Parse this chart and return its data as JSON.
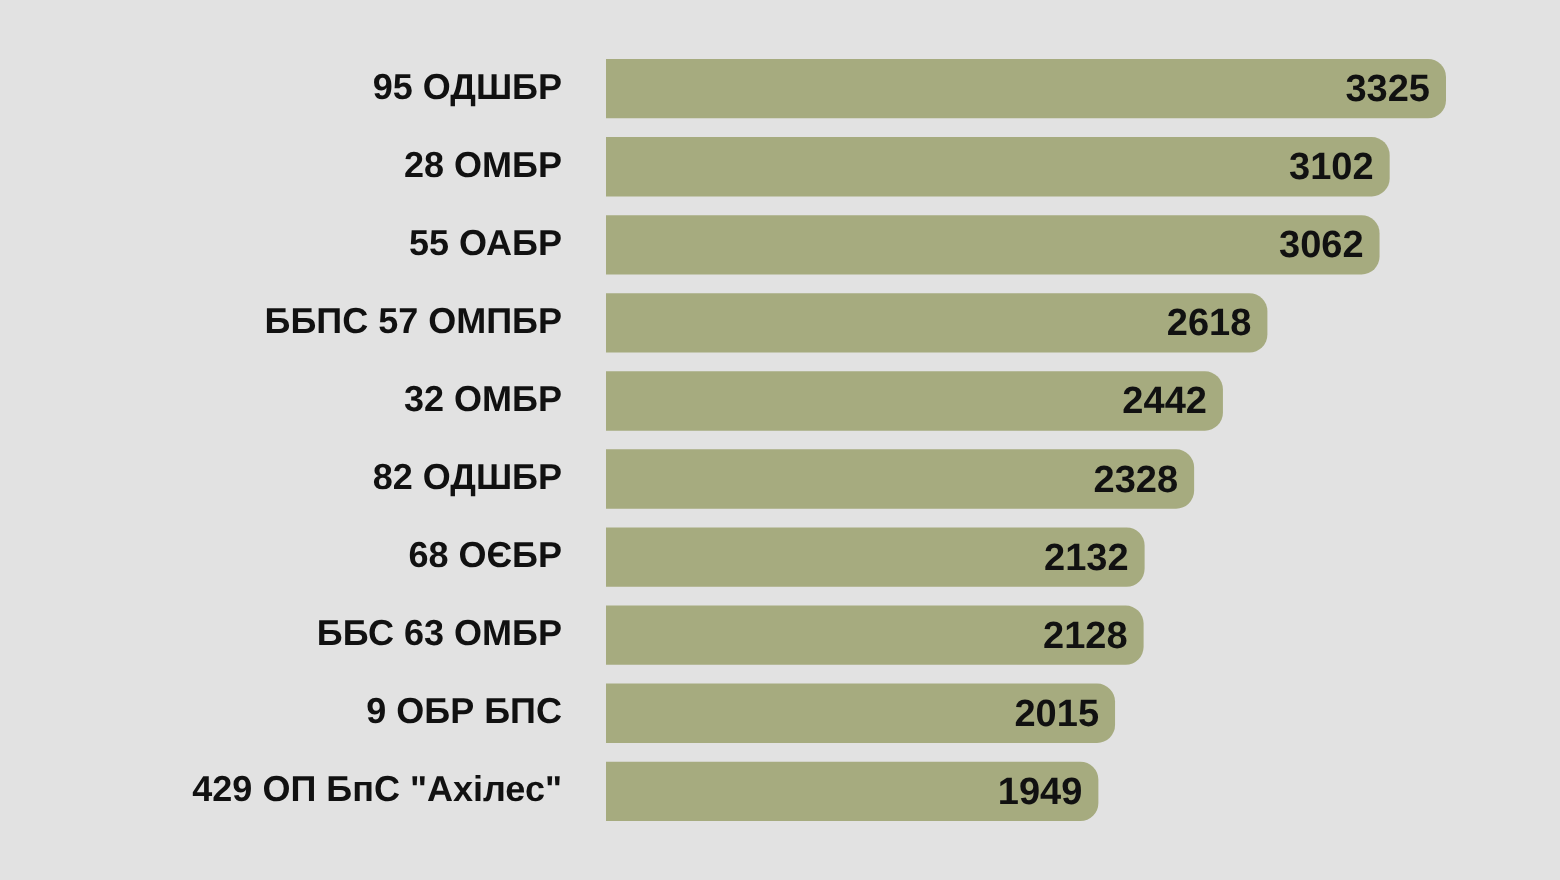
{
  "chart_data": {
    "type": "bar",
    "orientation": "horizontal",
    "categories": [
      "95 ОДШБР",
      "28 ОМБР",
      "55 ОАБР",
      "ББПС 57 ОМПБР",
      "32 ОМБР",
      "82 ОДШБР",
      "68 ОЄБР",
      "ББС 63 ОМБР",
      "9 ОБР БПС",
      "429 ОП БпС \"Ахілес\""
    ],
    "values": [
      3325,
      3102,
      3062,
      2618,
      2442,
      2328,
      2132,
      2128,
      2015,
      1949
    ],
    "color": "#a6ab7f",
    "data_labels": true,
    "legend": false,
    "tick_labels": "y"
  }
}
